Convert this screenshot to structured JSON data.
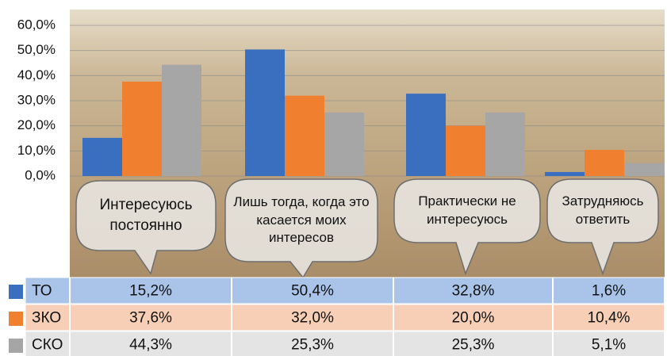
{
  "chart_data": {
    "type": "bar",
    "categories": [
      "Интересуюсь постоянно",
      "Лишь тогда, когда это касается моих интересов",
      "Практически не интересуюсь",
      "Затрудняюсь ответить"
    ],
    "series": [
      {
        "name": "ТО",
        "color": "#3a6fbf",
        "values": [
          15.2,
          50.4,
          32.8,
          1.6
        ],
        "value_labels": [
          "15,2%",
          "50,4%",
          "32,8%",
          "1,6%"
        ]
      },
      {
        "name": "ЗКО",
        "color": "#f07f2f",
        "values": [
          37.6,
          32.0,
          20.0,
          10.4
        ],
        "value_labels": [
          "37,6%",
          "32,0%",
          "20,0%",
          "10,4%"
        ]
      },
      {
        "name": "СКО",
        "color": "#a6a6a6",
        "values": [
          44.3,
          25.3,
          25.3,
          5.1
        ],
        "value_labels": [
          "44,3%",
          "25,3%",
          "25,3%",
          "5,1%"
        ]
      }
    ],
    "ylim": [
      0,
      60
    ],
    "yticks": [
      {
        "value": 0,
        "label": "0,0%"
      },
      {
        "value": 10,
        "label": "10,0%"
      },
      {
        "value": 20,
        "label": "20,0%"
      },
      {
        "value": 30,
        "label": "30,0%"
      },
      {
        "value": 40,
        "label": "40,0%"
      },
      {
        "value": 50,
        "label": "50,0%"
      },
      {
        "value": 60,
        "label": "60,0%"
      }
    ],
    "grid": true
  }
}
